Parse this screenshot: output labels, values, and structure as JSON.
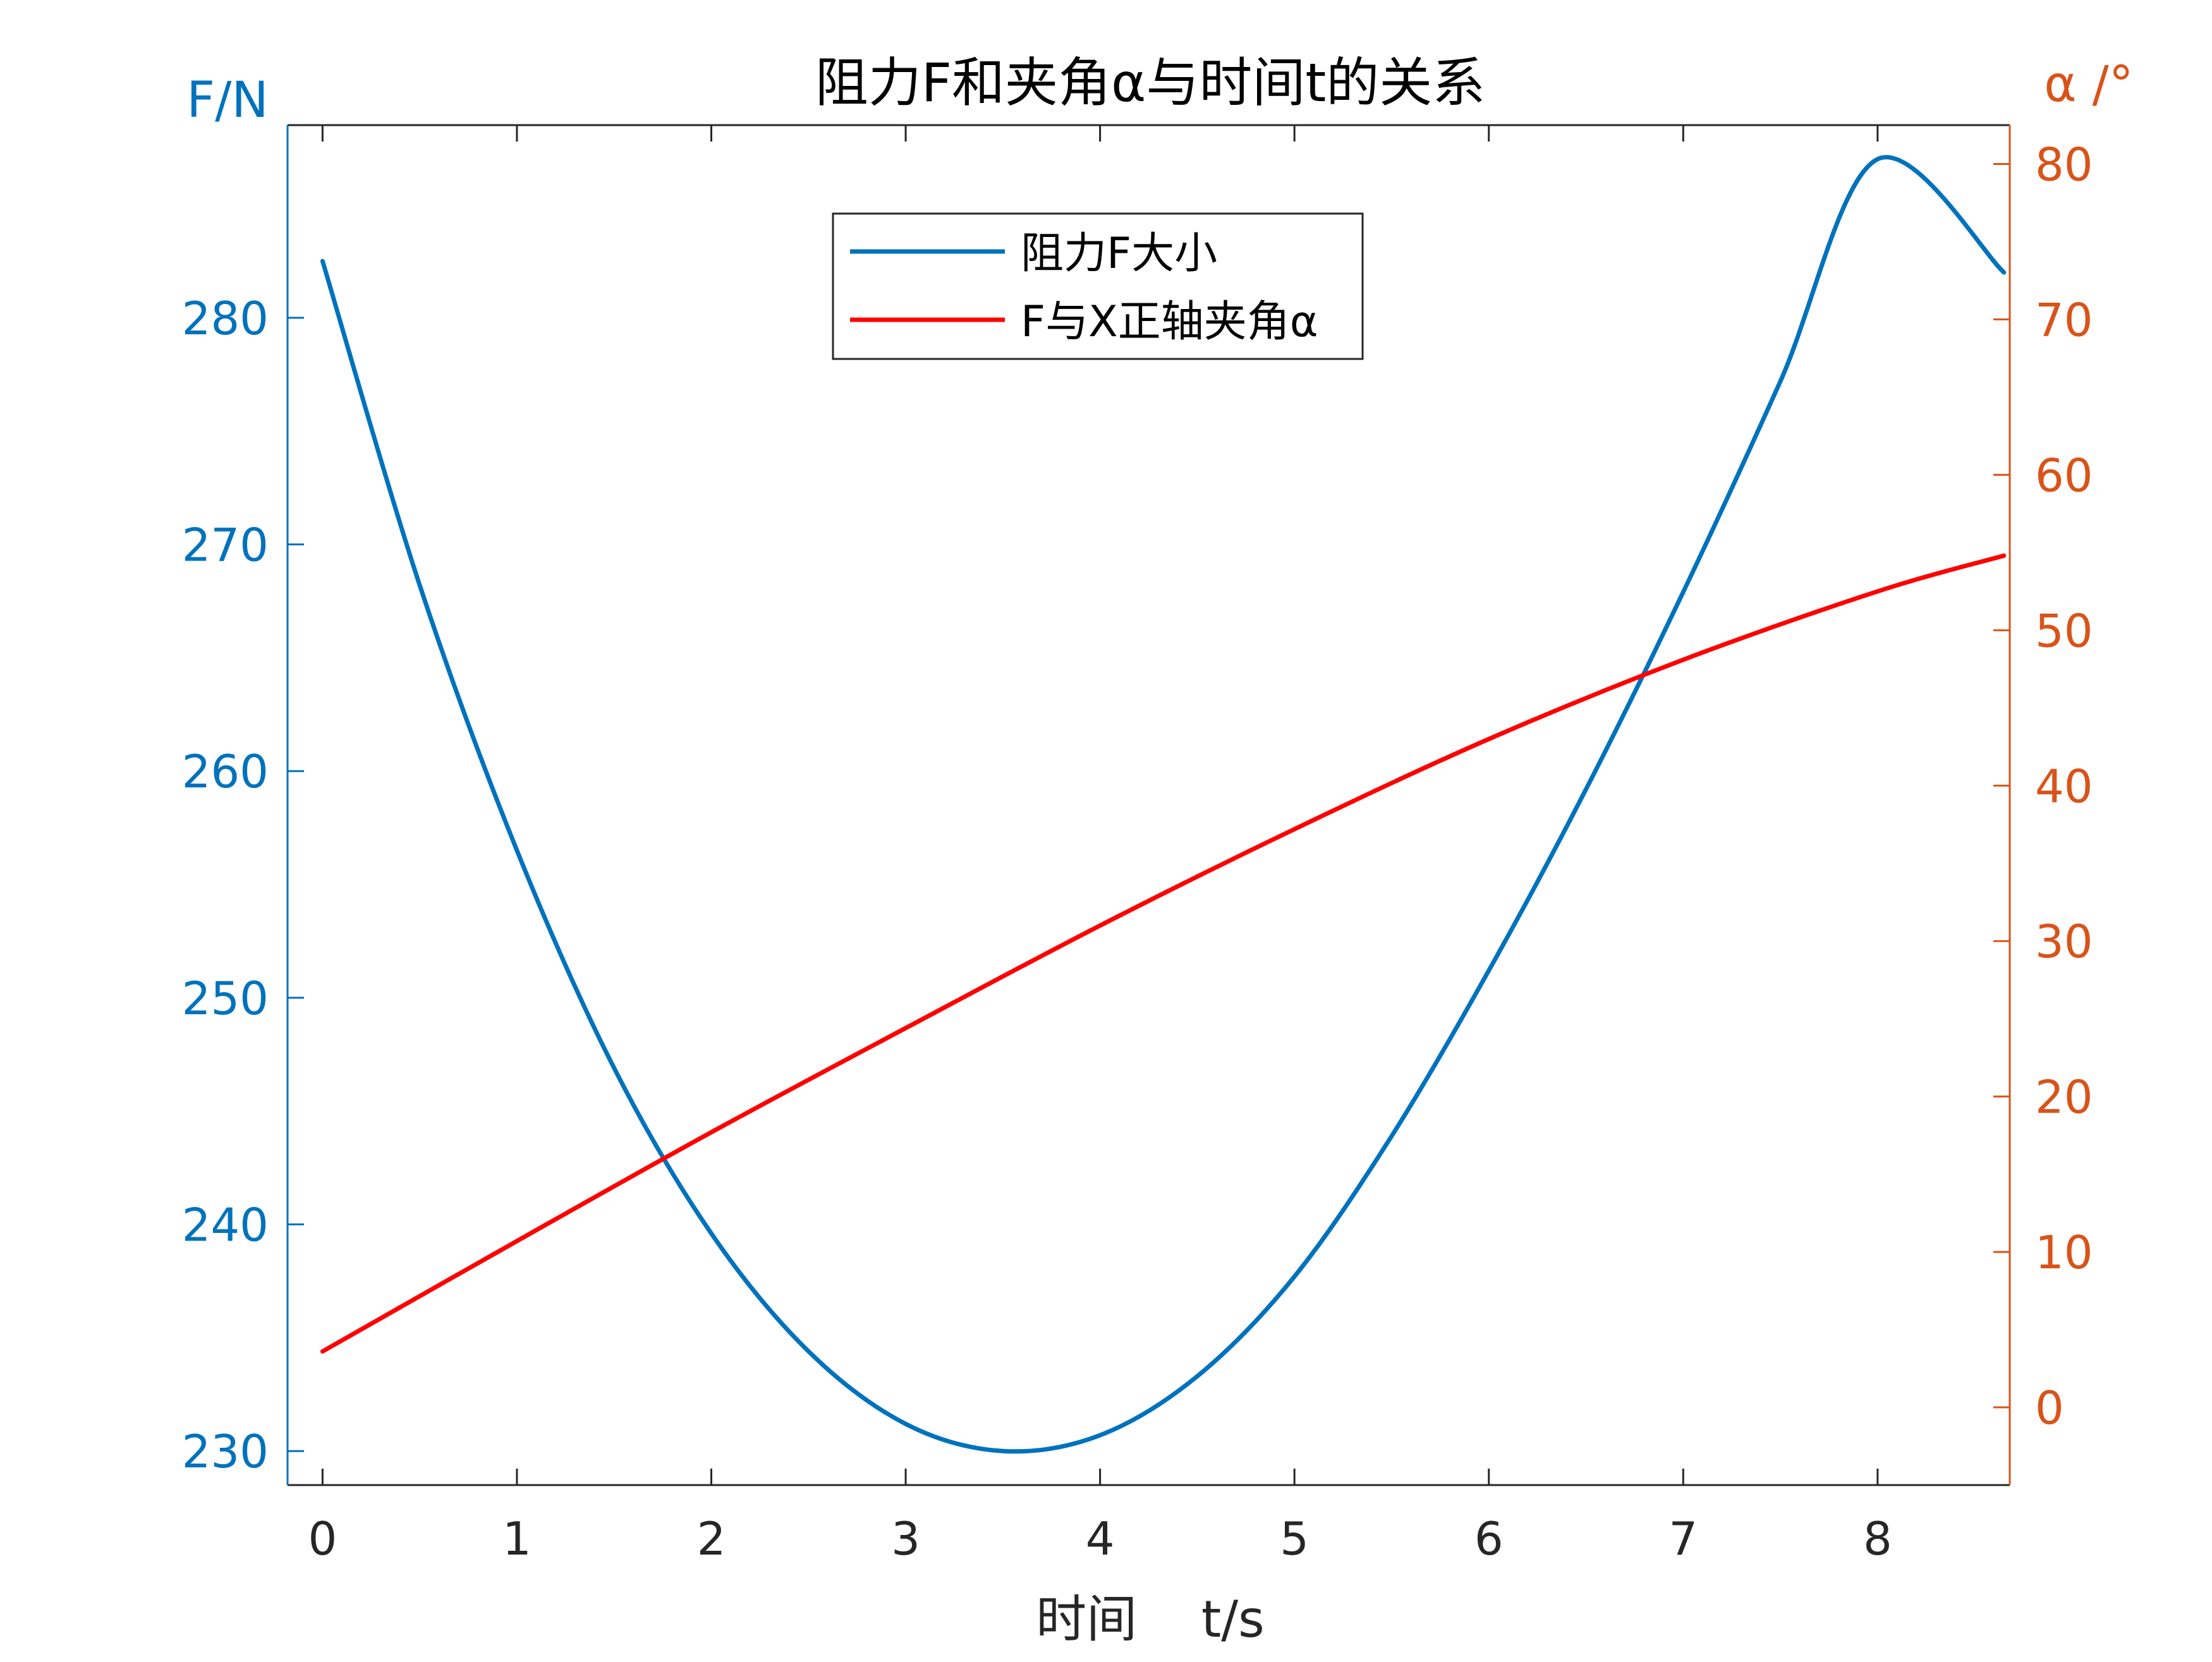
{
  "chart_data": {
    "type": "line",
    "title": "阻力F和夹角α与时间t的关系",
    "xlabel": "时间    t/s",
    "ylabel_left": "F/N",
    "ylabel_right": "α /°",
    "xlim": [
      -0.18,
      8.68
    ],
    "ylim_left": [
      228.5,
      288.5
    ],
    "ylim_right": [
      -5,
      82.5
    ],
    "x_ticks": [
      0,
      1,
      2,
      3,
      4,
      5,
      6,
      7,
      8
    ],
    "y_left_ticks": [
      230,
      240,
      250,
      260,
      270,
      280
    ],
    "y_right_ticks": [
      0,
      10,
      20,
      30,
      40,
      50,
      60,
      70,
      80
    ],
    "grid": false,
    "legend_position": "top-center",
    "colors": {
      "left_axis": "#0072BD",
      "right_axis": "#D95319",
      "axis_dark": "#262626",
      "force_line": "#0072BD",
      "angle_line": "#FF0000"
    },
    "series": [
      {
        "name": "阻力F大小",
        "axis": "left",
        "color": "#0072BD",
        "x": [
          0,
          0.5,
          1,
          1.5,
          2,
          2.5,
          3,
          3.5,
          4,
          4.5,
          5,
          5.5,
          6,
          6.5,
          7,
          7.5,
          8,
          8.65
        ],
        "y": [
          282.5,
          268.2,
          256.5,
          246.9,
          239.6,
          234.4,
          231.2,
          230.0,
          230.7,
          233.3,
          237.7,
          243.9,
          251.2,
          259.2,
          267.9,
          277.2,
          287.0,
          282.0
        ]
      },
      {
        "name": "F与X正轴夹角α",
        "axis": "right",
        "color": "#FF0000",
        "x": [
          0,
          1,
          2,
          3,
          4,
          5,
          6,
          7,
          8,
          8.65
        ],
        "y": [
          3.6,
          10.7,
          17.7,
          24.4,
          31.0,
          37.2,
          43.0,
          48.1,
          52.5,
          54.8
        ]
      }
    ]
  }
}
